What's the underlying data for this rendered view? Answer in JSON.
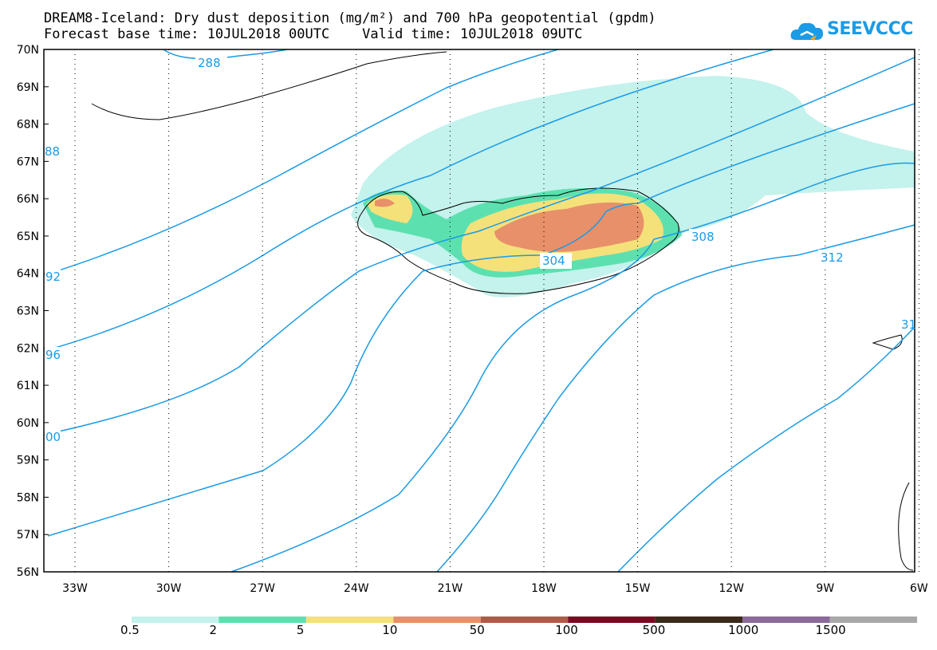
{
  "title": {
    "line1": "DREAM8-Iceland: Dry dust deposition (mg/m²) and 700 hPa geopotential (gpdm)",
    "line2": "Forecast base time: 10JUL2018 00UTC    Valid time: 10JUL2018 09UTC"
  },
  "logo": {
    "text": "SEEVCCC",
    "color": "#1a9be6"
  },
  "axes": {
    "lat_labels": [
      "70N",
      "69N",
      "68N",
      "67N",
      "66N",
      "65N",
      "64N",
      "63N",
      "62N",
      "61N",
      "60N",
      "59N",
      "58N",
      "57N",
      "56N"
    ],
    "lon_labels": [
      "33W",
      "30W",
      "27W",
      "24W",
      "21W",
      "18W",
      "15W",
      "12W",
      "9W",
      "6W"
    ]
  },
  "contours": {
    "color": "#1a9be6",
    "labels": [
      "288",
      "304",
      "308",
      "312",
      "92",
      "96",
      "00",
      "88",
      "31"
    ]
  },
  "legend": {
    "colors": [
      "#c4f2ec",
      "#5de0b0",
      "#f5e17a",
      "#e8906a",
      "#b05a48",
      "#7a0a22",
      "#3a2a1a",
      "#8a6a9a",
      "#a8a8a8"
    ],
    "labels": [
      "0.5",
      "2",
      "5",
      "10",
      "50",
      "100",
      "500",
      "1000",
      "1500"
    ]
  }
}
